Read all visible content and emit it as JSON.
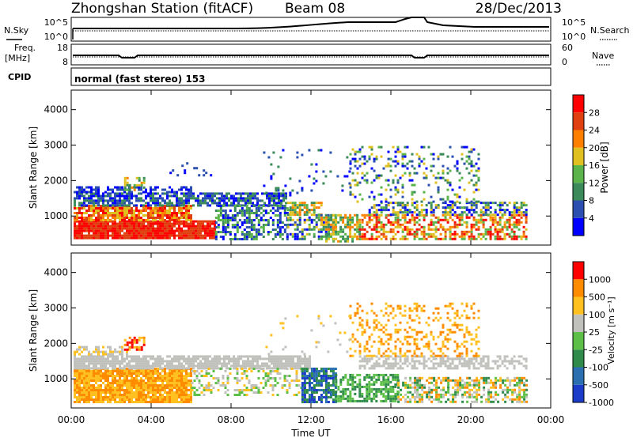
{
  "header": {
    "station": "Zhongshan Station (fitACF)",
    "beam": "Beam 08",
    "date": "28/Dec/2013"
  },
  "noise_panel": {
    "left_label": "N.Sky",
    "left_ticks": [
      "10^5",
      "10^0"
    ],
    "right_ticks": [
      "10^5",
      "10^0"
    ],
    "right_label": "N.Search"
  },
  "freq_panel": {
    "left_label_1": "Freq.",
    "left_label_2": "[MHz]",
    "left_ticks": [
      "18",
      "8"
    ],
    "right_ticks": [
      "60",
      "0"
    ],
    "right_label": "Nave"
  },
  "cpid_panel": {
    "label": "CPID",
    "text": "normal (fast stereo) 153"
  },
  "chart_data": [
    {
      "type": "heatmap",
      "name": "Power",
      "ylabel": "Slant Range [km]",
      "yticks": [
        "4000",
        "3000",
        "2000",
        "1000"
      ],
      "colorbar_label": "Power [dB]",
      "colorbar_ticks": [
        "28",
        "24",
        "20",
        "16",
        "12",
        "8",
        "4"
      ],
      "colors": [
        "#0000ff",
        "#2a4fb0",
        "#3a8a5a",
        "#5ab44a",
        "#e0c020",
        "#ff8000",
        "#e04010",
        "#ff0000"
      ]
    },
    {
      "type": "heatmap",
      "name": "Velocity",
      "ylabel": "Slant Range [km]",
      "yticks": [
        "4000",
        "3000",
        "2000",
        "1000"
      ],
      "colorbar_label": "Velocity [m s⁻¹]",
      "colorbar_ticks": [
        "1000",
        "500",
        "100",
        "25",
        "-25",
        "-100",
        "-500",
        "-1000"
      ],
      "colors": [
        "#1a3cc8",
        "#2a70b0",
        "#2e8b4a",
        "#5cc048",
        "#c0c0bc",
        "#ffc020",
        "#ff8c00",
        "#ff0000"
      ]
    }
  ],
  "xaxis": {
    "ticks": [
      "00:00",
      "04:00",
      "08:00",
      "12:00",
      "16:00",
      "20:00",
      "00:00"
    ],
    "label": "Time UT"
  }
}
